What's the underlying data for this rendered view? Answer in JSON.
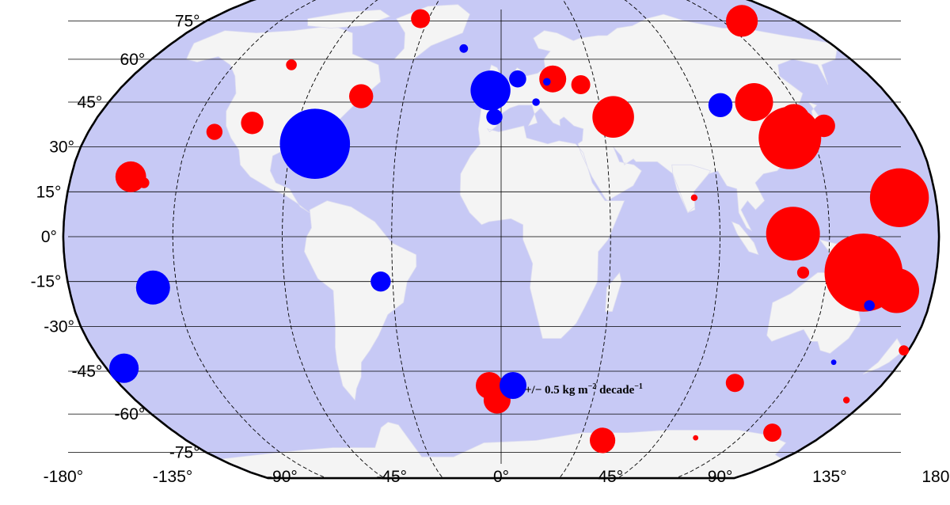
{
  "map": {
    "projection": "Robinson",
    "ocean_color": "#c7c9f5",
    "land_color": "#f4f4f4",
    "border_color": "#000000",
    "gridline_color": "#000000",
    "positive_color": "#ff0000",
    "negative_color": "#0000ff"
  },
  "axes": {
    "lat_labels": [
      {
        "value": 75,
        "text": "75°"
      },
      {
        "value": 60,
        "text": "60°"
      },
      {
        "value": 45,
        "text": "45°"
      },
      {
        "value": 30,
        "text": "30°"
      },
      {
        "value": 15,
        "text": "15°"
      },
      {
        "value": 0,
        "text": "0°"
      },
      {
        "value": -15,
        "text": "-15°"
      },
      {
        "value": -30,
        "text": "-30°"
      },
      {
        "value": -45,
        "text": "-45°"
      },
      {
        "value": -60,
        "text": "-60°"
      },
      {
        "value": -75,
        "text": "-75°"
      }
    ],
    "lon_labels": [
      {
        "value": -180,
        "text": "-180°"
      },
      {
        "value": -135,
        "text": "-135°"
      },
      {
        "value": -90,
        "text": "-90°"
      },
      {
        "value": -45,
        "text": "-45°"
      },
      {
        "value": 0,
        "text": "0°"
      },
      {
        "value": 45,
        "text": "45°"
      },
      {
        "value": 90,
        "text": "90°"
      },
      {
        "value": 135,
        "text": "135°"
      },
      {
        "value": 180,
        "text": "180°"
      }
    ]
  },
  "legend": {
    "text_prefix": "+/− 0.5 kg m",
    "exp1": "−2",
    "text_mid": " decade",
    "exp2": "−1",
    "positive_label": "+",
    "negative_label": "−",
    "reference_magnitude": 0.5
  },
  "stations": [
    {
      "lon": -155,
      "lat": 20,
      "sign": "+",
      "magnitude": 0.65
    },
    {
      "lon": -149,
      "lat": 18,
      "sign": "+",
      "magnitude": 0.08
    },
    {
      "lon": -145,
      "lat": -17,
      "sign": "-",
      "magnitude": 0.8
    },
    {
      "lon": -172,
      "lat": -44,
      "sign": "-",
      "magnitude": 0.6
    },
    {
      "lon": -125,
      "lat": 35,
      "sign": "+",
      "magnitude": 0.18
    },
    {
      "lon": -110,
      "lat": 38,
      "sign": "+",
      "magnitude": 0.35
    },
    {
      "lon": -106,
      "lat": 58,
      "sign": "+",
      "magnitude": 0.08
    },
    {
      "lon": -80,
      "lat": 31,
      "sign": "-",
      "magnitude": 3.4
    },
    {
      "lon": -65,
      "lat": 47,
      "sign": "+",
      "magnitude": 0.4
    },
    {
      "lon": -50,
      "lat": 76,
      "sign": "+",
      "magnitude": 0.25
    },
    {
      "lon": -50,
      "lat": -15,
      "sign": "-",
      "magnitude": 0.28
    },
    {
      "lon": -20,
      "lat": 64,
      "sign": "-",
      "magnitude": 0.05
    },
    {
      "lon": -5,
      "lat": 49,
      "sign": "-",
      "magnitude": 1.1
    },
    {
      "lon": -3,
      "lat": 40,
      "sign": "-",
      "magnitude": 0.18
    },
    {
      "lon": 8,
      "lat": 53,
      "sign": "-",
      "magnitude": 0.2
    },
    {
      "lon": 16,
      "lat": 45,
      "sign": "-",
      "magnitude": 0.04
    },
    {
      "lon": 22,
      "lat": 52,
      "sign": "-",
      "magnitude": 0.04
    },
    {
      "lon": 25,
      "lat": 53,
      "sign": "+",
      "magnitude": 0.5
    },
    {
      "lon": 38,
      "lat": 51,
      "sign": "+",
      "magnitude": 0.25
    },
    {
      "lon": 50,
      "lat": 40,
      "sign": "+",
      "magnitude": 1.2
    },
    {
      "lon": 100,
      "lat": 44,
      "sign": "-",
      "magnitude": 0.4
    },
    {
      "lon": 116,
      "lat": 45,
      "sign": "+",
      "magnitude": 1.0
    },
    {
      "lon": 80,
      "lat": 13,
      "sign": "+",
      "magnitude": 0.03
    },
    {
      "lon": 125,
      "lat": 33,
      "sign": "+",
      "magnitude": 2.7
    },
    {
      "lon": 130,
      "lat": 39,
      "sign": "+",
      "magnitude": 0.7
    },
    {
      "lon": 147,
      "lat": 75,
      "sign": "+",
      "magnitude": 0.7
    },
    {
      "lon": 142,
      "lat": 37,
      "sign": "+",
      "magnitude": 0.35
    },
    {
      "lon": 165,
      "lat": 13,
      "sign": "+",
      "magnitude": 2.4
    },
    {
      "lon": 120,
      "lat": 1,
      "sign": "+",
      "magnitude": 2.0
    },
    {
      "lon": 125,
      "lat": -12,
      "sign": "+",
      "magnitude": 0.1
    },
    {
      "lon": 150,
      "lat": -12,
      "sign": "+",
      "magnitude": 4.2
    },
    {
      "lon": 165,
      "lat": -18,
      "sign": "+",
      "magnitude": 1.4
    },
    {
      "lon": 155,
      "lat": -23,
      "sign": "-",
      "magnitude": 0.08
    },
    {
      "lon": 150,
      "lat": -42,
      "sign": "-",
      "magnitude": 0.02
    },
    {
      "lon": 178,
      "lat": -38,
      "sign": "+",
      "magnitude": 0.07
    },
    {
      "lon": 170,
      "lat": -55,
      "sign": "+",
      "magnitude": 0.03
    },
    {
      "lon": 110,
      "lat": -49,
      "sign": "+",
      "magnitude": 0.23
    },
    {
      "lon": 150,
      "lat": -67,
      "sign": "+",
      "magnitude": 0.23
    },
    {
      "lon": 110,
      "lat": -69,
      "sign": "+",
      "magnitude": 0.02
    },
    {
      "lon": 58,
      "lat": -70,
      "sign": "+",
      "magnitude": 0.45
    },
    {
      "lon": -2,
      "lat": -55,
      "sign": "+",
      "magnitude": 0.5
    }
  ]
}
